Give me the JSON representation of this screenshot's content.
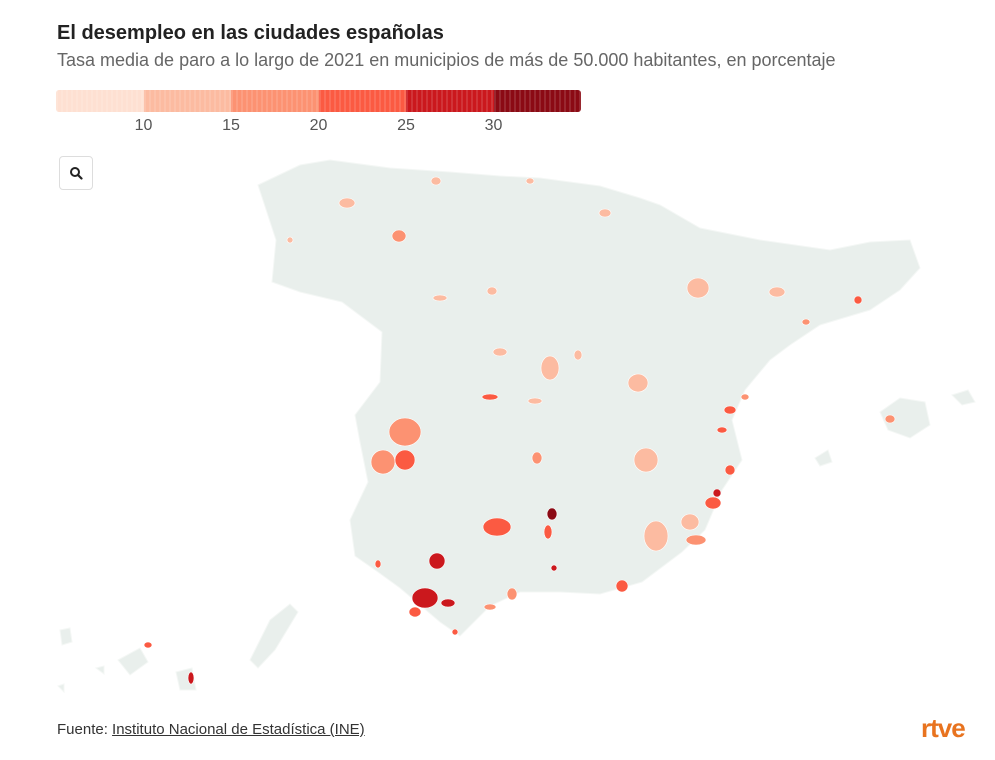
{
  "title": "El desempleo en las ciudades españolas",
  "subtitle": "Tasa media de paro a lo largo de 2021 en municipios de más de 50.000 habitantes, en porcentaje",
  "legend": {
    "ticks": [
      "10",
      "15",
      "20",
      "25",
      "30"
    ],
    "bins": [
      {
        "min": 5,
        "max": 10,
        "color": "#fee0d2"
      },
      {
        "min": 10,
        "max": 15,
        "color": "#fcbba1"
      },
      {
        "min": 15,
        "max": 20,
        "color": "#fc9272"
      },
      {
        "min": 20,
        "max": 25,
        "color": "#fb5a42"
      },
      {
        "min": 25,
        "max": 30,
        "color": "#cb181d"
      },
      {
        "min": 30,
        "max": 35,
        "color": "#8b0a14"
      }
    ]
  },
  "map": {
    "base_color": "#e9efec",
    "border_color": "#ffffff"
  },
  "zoom_icon": "search-icon",
  "footer": {
    "source_label": "Fuente: ",
    "source_link": "Instituto Nacional de Estadística (INE)"
  },
  "logo": "rtve"
}
